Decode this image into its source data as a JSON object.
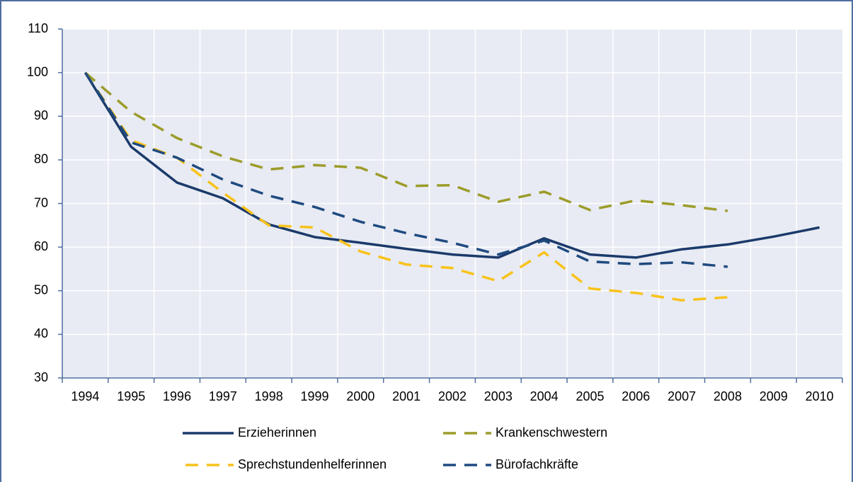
{
  "chart_data": {
    "type": "line",
    "categories": [
      "1994",
      "1995",
      "1996",
      "1997",
      "1998",
      "1999",
      "2000",
      "2001",
      "2002",
      "2003",
      "2004",
      "2005",
      "2006",
      "2007",
      "2008",
      "2009",
      "2010"
    ],
    "ylim": [
      30,
      110
    ],
    "yticks": [
      30,
      40,
      50,
      60,
      70,
      80,
      90,
      100,
      110
    ],
    "grid": true,
    "series": [
      {
        "name": "Erzieherinnen",
        "color": "#1b3a6b",
        "dash": "solid",
        "values": [
          100,
          83,
          74.8,
          71.2,
          65.2,
          62.3,
          61,
          59.6,
          58.3,
          57.6,
          62,
          58.3,
          57.6,
          59.5,
          60.6,
          62.4,
          64.5
        ]
      },
      {
        "name": "Krankenschwestern",
        "color": "#9c9c2a",
        "dash": "dashed",
        "values": [
          100,
          91,
          85,
          80.8,
          77.8,
          78.8,
          78.2,
          74,
          74.2,
          70.4,
          72.7,
          68.5,
          70.7,
          69.6,
          68.3,
          null,
          null
        ]
      },
      {
        "name": "Sprechstundenhelferinnen",
        "color": "#f8c21a",
        "dash": "dashed",
        "values": [
          100,
          84.5,
          80.5,
          72.5,
          65,
          64.5,
          59,
          56,
          55.2,
          52.2,
          58.8,
          50.5,
          49.5,
          47.8,
          48.5,
          null,
          null
        ]
      },
      {
        "name": "Bürofachkräfte",
        "color": "#1f4a80",
        "dash": "dashed",
        "values": [
          100,
          84,
          80.5,
          75.5,
          71.8,
          69.2,
          65.8,
          63.2,
          61,
          58.3,
          61.5,
          56.7,
          56.1,
          56.5,
          55.5,
          null,
          null
        ]
      }
    ]
  }
}
